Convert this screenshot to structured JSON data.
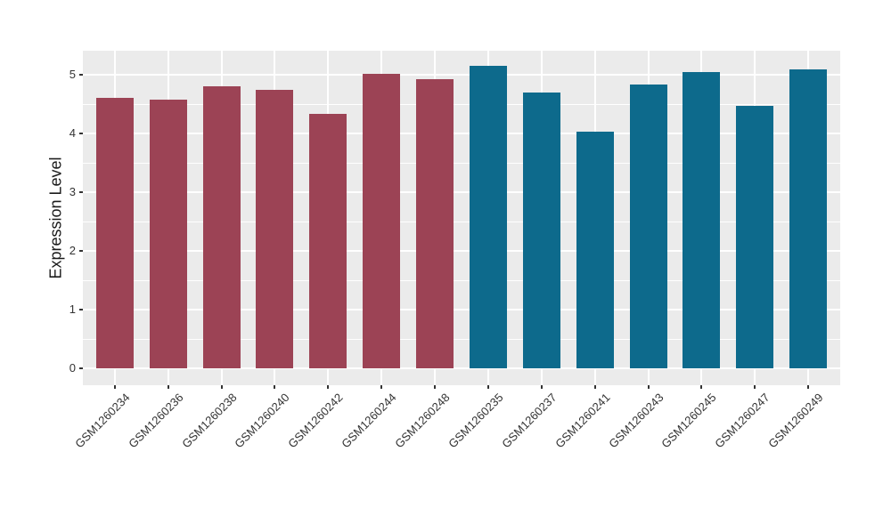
{
  "chart_data": {
    "type": "bar",
    "title": "",
    "xlabel": "",
    "ylabel": "Expression Level",
    "ylim": [
      0,
      5.41
    ],
    "yticks": [
      0,
      1,
      2,
      3,
      4,
      5
    ],
    "grid": "on",
    "legend_position": "none",
    "categories": [
      "GSM1260234",
      "GSM1260236",
      "GSM1260238",
      "GSM1260240",
      "GSM1260242",
      "GSM1260244",
      "GSM1260248",
      "GSM1260235",
      "GSM1260237",
      "GSM1260241",
      "GSM1260243",
      "GSM1260245",
      "GSM1260247",
      "GSM1260249"
    ],
    "values": [
      4.6,
      4.57,
      4.8,
      4.75,
      4.33,
      5.02,
      4.92,
      5.15,
      4.69,
      4.03,
      4.84,
      5.04,
      4.47,
      5.09
    ],
    "groups": [
      "group1",
      "group1",
      "group1",
      "group1",
      "group1",
      "group1",
      "group1",
      "group2",
      "group2",
      "group2",
      "group2",
      "group2",
      "group2",
      "group2"
    ],
    "colors": {
      "group1": "#9C4355",
      "group2": "#0D6A8C",
      "panel_background": "#EBEBEB",
      "figure_background": "#FFFFFF",
      "gridline": "#FFFFFF",
      "tick": "#333333",
      "text": "#1A1A1A"
    }
  }
}
